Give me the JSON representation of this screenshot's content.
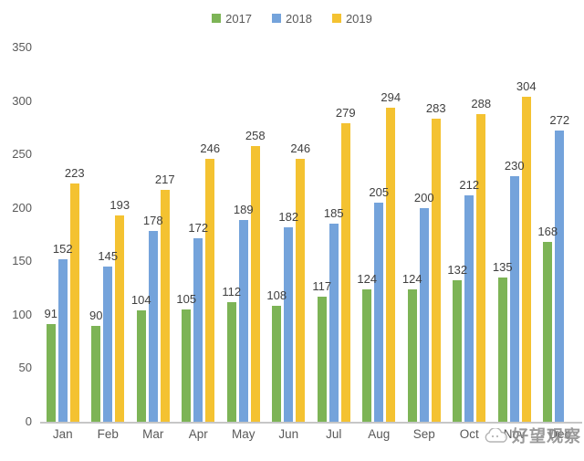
{
  "chart_data": {
    "type": "bar",
    "title": "",
    "xlabel": "",
    "ylabel": "",
    "categories": [
      "Jan",
      "Feb",
      "Mar",
      "Apr",
      "May",
      "Jun",
      "Jul",
      "Aug",
      "Sep",
      "Oct",
      "Nov",
      "Dec"
    ],
    "series": [
      {
        "name": "2017",
        "color": "#7db456",
        "values": [
          91,
          90,
          104,
          105,
          112,
          108,
          117,
          124,
          124,
          132,
          135,
          168
        ]
      },
      {
        "name": "2018",
        "color": "#74a3db",
        "values": [
          152,
          145,
          178,
          172,
          189,
          182,
          185,
          205,
          200,
          212,
          230,
          272
        ]
      },
      {
        "name": "2019",
        "color": "#f4c231",
        "values": [
          223,
          193,
          217,
          246,
          258,
          246,
          279,
          294,
          283,
          288,
          304,
          null
        ]
      }
    ],
    "ylim": [
      0,
      350
    ],
    "yticks": [
      0,
      50,
      100,
      150,
      200,
      250,
      300,
      350
    ],
    "grid": false,
    "legend_position": "top",
    "data_labels": true,
    "axis_text_color": "#595959",
    "data_label_color": "#404040",
    "baseline_color": "#c6c6c6"
  },
  "watermark": {
    "text": "好望观察",
    "icon": "cloud-icon",
    "color": "#8d8d8d"
  }
}
